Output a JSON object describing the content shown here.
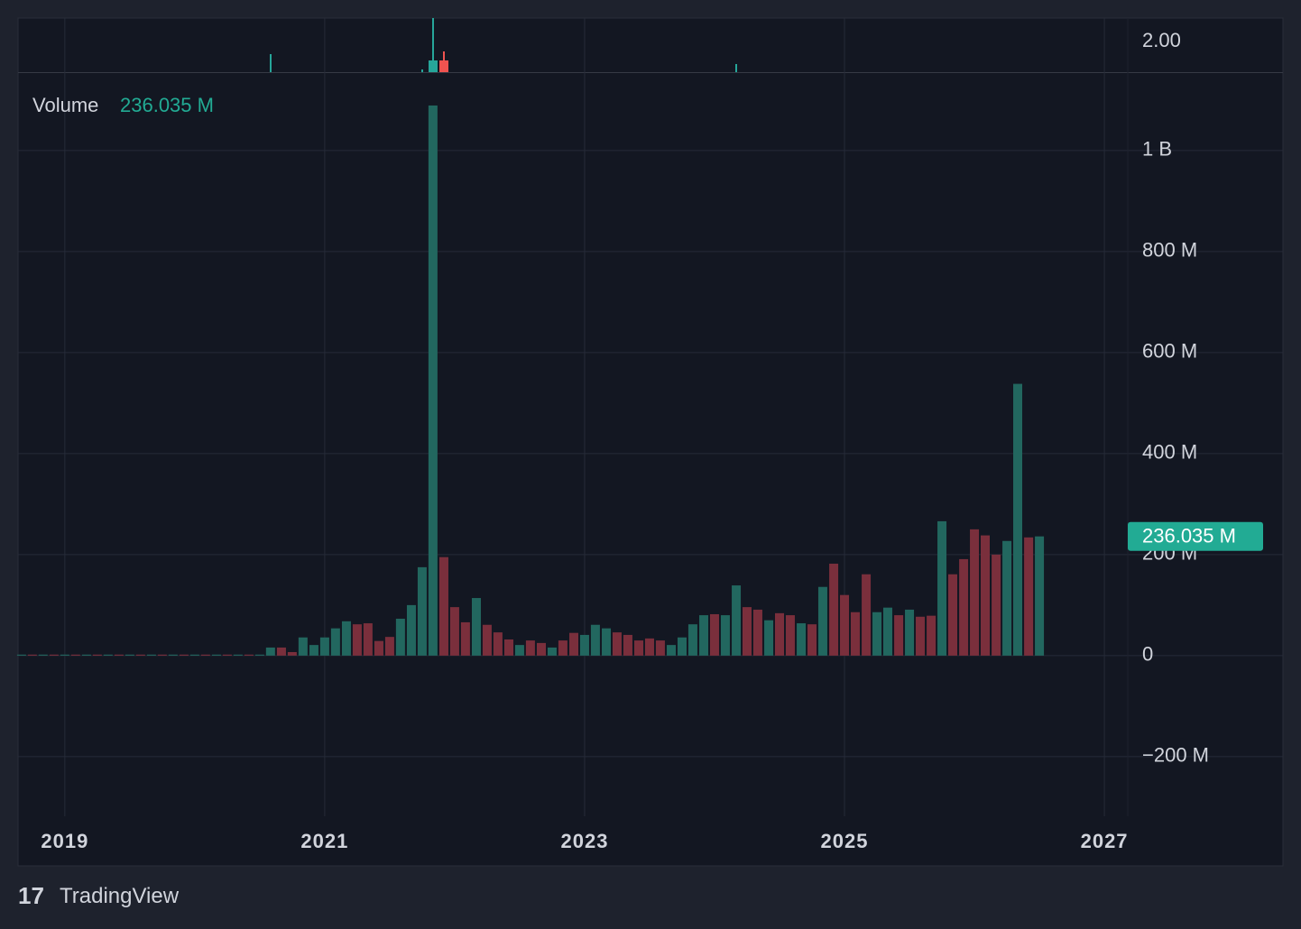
{
  "chart_data": {
    "type": "bar",
    "title": "Volume",
    "current_label": "236.035 M",
    "brand": "TradingView",
    "x": [
      2018.667,
      2018.75,
      2018.833,
      2018.917,
      2019.0,
      2019.083,
      2019.167,
      2019.25,
      2019.333,
      2019.417,
      2019.5,
      2019.583,
      2019.667,
      2019.75,
      2019.833,
      2019.917,
      2020.0,
      2020.083,
      2020.167,
      2020.25,
      2020.333,
      2020.417,
      2020.5,
      2020.583,
      2020.667,
      2020.75,
      2020.833,
      2020.917,
      2021.0,
      2021.083,
      2021.167,
      2021.25,
      2021.333,
      2021.417,
      2021.5,
      2021.583,
      2021.667,
      2021.75,
      2021.833,
      2021.917,
      2022.0,
      2022.083,
      2022.167,
      2022.25,
      2022.333,
      2022.417,
      2022.5,
      2022.583,
      2022.667,
      2022.75,
      2022.833,
      2022.917,
      2023.0,
      2023.083,
      2023.167,
      2023.25,
      2023.333,
      2023.417,
      2023.5,
      2023.583,
      2023.667,
      2023.75,
      2023.833,
      2023.917,
      2024.0,
      2024.083,
      2024.167,
      2024.25,
      2024.333,
      2024.417,
      2024.5,
      2024.583,
      2024.667,
      2024.75,
      2024.833,
      2024.917,
      2025.0,
      2025.083,
      2025.167,
      2025.25,
      2025.333,
      2025.417,
      2025.5,
      2025.583,
      2025.667,
      2025.75,
      2025.833,
      2025.917,
      2026.0,
      2026.083,
      2026.167,
      2026.25,
      2026.333,
      2026.417,
      2026.5
    ],
    "values": [
      2000000,
      2000000,
      2000000,
      2000000,
      2000000,
      2000000,
      2000000,
      2000000,
      2000000,
      2000000,
      2000000,
      2000000,
      2000000,
      2000000,
      2000000,
      2000000,
      2000000,
      2000000,
      2000000,
      2000000,
      2000000,
      2000000,
      2000000,
      16000000,
      16000000,
      7000000,
      36000000,
      21000000,
      36000000,
      54000000,
      68000000,
      62000000,
      64000000,
      29000000,
      37000000,
      73000000,
      100000000,
      175000000,
      1089000000,
      195000000,
      96000000,
      66000000,
      114000000,
      61000000,
      46000000,
      32000000,
      21000000,
      30000000,
      25000000,
      16000000,
      30000000,
      45000000,
      41000000,
      61000000,
      54000000,
      46000000,
      41000000,
      30000000,
      34000000,
      30000000,
      21000000,
      36000000,
      62000000,
      80000000,
      82000000,
      80000000,
      139000000,
      96000000,
      91000000,
      70000000,
      84000000,
      80000000,
      64000000,
      62000000,
      136000000,
      182000000,
      120000000,
      86000000,
      161000000,
      86000000,
      95000000,
      80000000,
      91000000,
      77000000,
      79000000,
      266000000,
      161000000,
      191000000,
      250000000,
      238000000,
      200000000,
      227000000,
      538000000,
      234000000,
      236035000
    ],
    "colors": [
      "#22675f",
      "#7a2f3c",
      "#22675f",
      "#7a2f3c",
      "#22675f",
      "#7a2f3c",
      "#22675f",
      "#7a2f3c",
      "#22675f",
      "#7a2f3c",
      "#22675f",
      "#7a2f3c",
      "#22675f",
      "#7a2f3c",
      "#22675f",
      "#7a2f3c",
      "#22675f",
      "#7a2f3c",
      "#22675f",
      "#7a2f3c",
      "#22675f",
      "#7a2f3c",
      "#22675f",
      "#22675f",
      "#7a2f3c",
      "#7a2f3c",
      "#22675f",
      "#22675f",
      "#22675f",
      "#22675f",
      "#22675f",
      "#7a2f3c",
      "#7a2f3c",
      "#7a2f3c",
      "#7a2f3c",
      "#22675f",
      "#22675f",
      "#22675f",
      "#22675f",
      "#7a2f3c",
      "#7a2f3c",
      "#7a2f3c",
      "#22675f",
      "#7a2f3c",
      "#7a2f3c",
      "#7a2f3c",
      "#22675f",
      "#7a2f3c",
      "#7a2f3c",
      "#22675f",
      "#7a2f3c",
      "#7a2f3c",
      "#22675f",
      "#22675f",
      "#22675f",
      "#7a2f3c",
      "#7a2f3c",
      "#7a2f3c",
      "#7a2f3c",
      "#7a2f3c",
      "#22675f",
      "#22675f",
      "#22675f",
      "#22675f",
      "#7a2f3c",
      "#22675f",
      "#22675f",
      "#7a2f3c",
      "#7a2f3c",
      "#22675f",
      "#7a2f3c",
      "#7a2f3c",
      "#22675f",
      "#7a2f3c",
      "#22675f",
      "#7a2f3c",
      "#7a2f3c",
      "#7a2f3c",
      "#7a2f3c",
      "#22675f",
      "#22675f",
      "#7a2f3c",
      "#22675f",
      "#7a2f3c",
      "#7a2f3c",
      "#22675f",
      "#7a2f3c",
      "#7a2f3c",
      "#7a2f3c",
      "#7a2f3c",
      "#7a2f3c",
      "#22675f",
      "#22675f",
      "#7a2f3c",
      "#22675f"
    ],
    "current_color": "#22ab94",
    "xlim": [
      2018.64,
      2027.18
    ],
    "xticks": [
      2019,
      2021,
      2023,
      2025,
      2027
    ],
    "ylim": [
      -318000000,
      1155000000
    ],
    "yticks": [
      {
        "value": -200000000,
        "label": "−200 M"
      },
      0,
      {
        "value": 200000000,
        "label": "200 M"
      },
      {
        "value": 400000000,
        "label": "400 M"
      },
      {
        "value": 600000000,
        "label": "600 M"
      },
      {
        "value": 800000000,
        "label": "800 M"
      },
      {
        "value": 1000000000,
        "label": "1 B"
      }
    ],
    "price_ticks": [
      {
        "value": 2,
        "label": "2.00"
      }
    ],
    "grid": true
  }
}
